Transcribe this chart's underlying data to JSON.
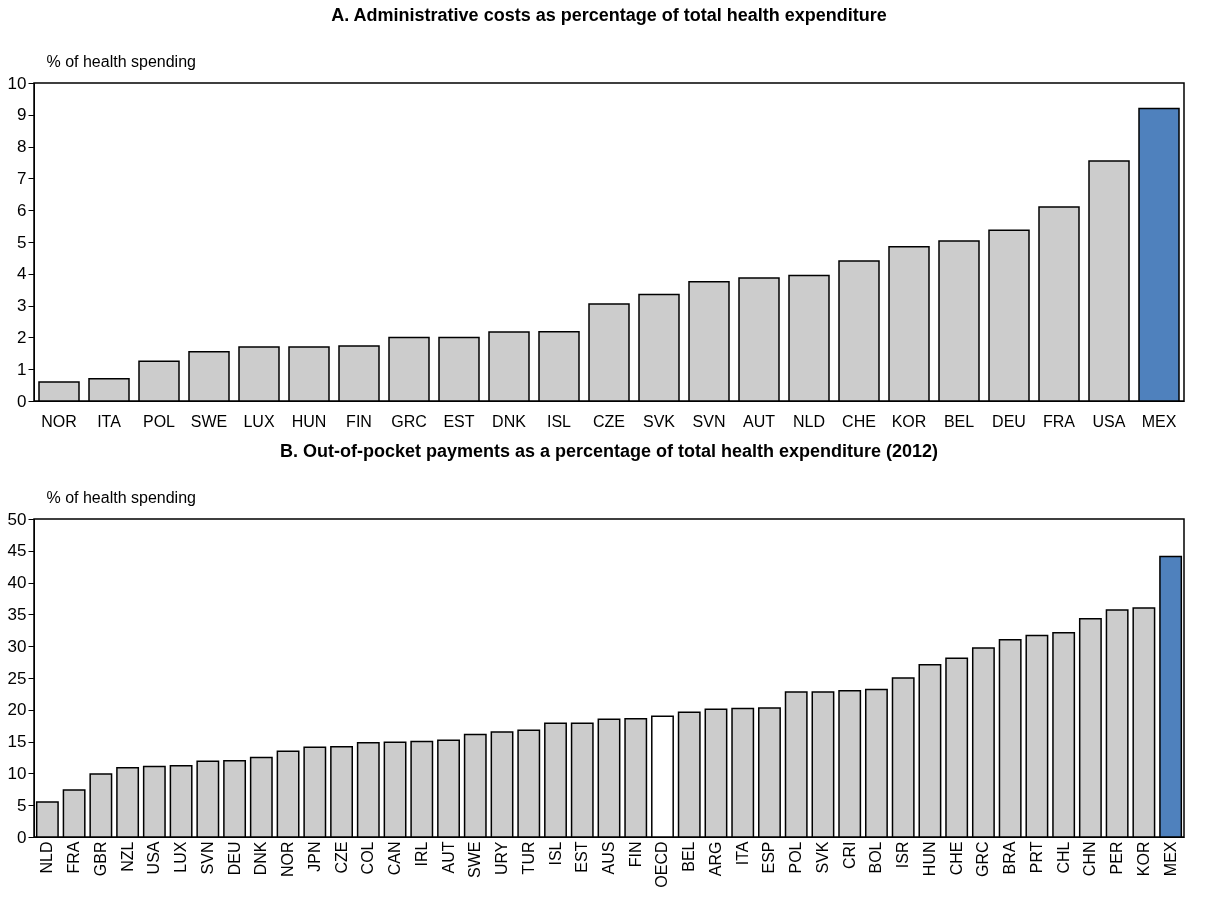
{
  "chart_data": [
    {
      "type": "bar",
      "title": "A. Administrative costs as percentage of total health expenditure",
      "ylabel": "% of health spending",
      "categories": [
        "NOR",
        "ITA",
        "POL",
        "SWE",
        "LUX",
        "HUN",
        "FIN",
        "GRC",
        "EST",
        "DNK",
        "ISL",
        "CZE",
        "SVK",
        "SVN",
        "AUT",
        "NLD",
        "CHE",
        "KOR",
        "BEL",
        "DEU",
        "FRA",
        "USA",
        "MEX"
      ],
      "values": [
        0.6,
        0.7,
        1.25,
        1.55,
        1.7,
        1.7,
        1.73,
        2.0,
        2.0,
        2.17,
        2.18,
        3.05,
        3.35,
        3.75,
        3.87,
        3.95,
        4.4,
        4.85,
        5.03,
        5.37,
        6.1,
        7.55,
        9.2
      ],
      "colors": [
        "#cccccc",
        "#cccccc",
        "#cccccc",
        "#cccccc",
        "#cccccc",
        "#cccccc",
        "#cccccc",
        "#cccccc",
        "#cccccc",
        "#cccccc",
        "#cccccc",
        "#cccccc",
        "#cccccc",
        "#cccccc",
        "#cccccc",
        "#cccccc",
        "#cccccc",
        "#cccccc",
        "#cccccc",
        "#cccccc",
        "#cccccc",
        "#cccccc",
        "#4f81bd"
      ],
      "ylim": [
        0,
        10
      ],
      "yticks": [
        0,
        1,
        2,
        3,
        4,
        5,
        6,
        7,
        8,
        9,
        10
      ],
      "grid": false
    },
    {
      "type": "bar",
      "title": "B. Out-of-pocket payments as a percentage of total health expenditure (2012)",
      "ylabel": "% of health spending",
      "categories": [
        "NLD",
        "FRA",
        "GBR",
        "NZL",
        "USA",
        "LUX",
        "SVN",
        "DEU",
        "DNK",
        "NOR",
        "JPN",
        "CZE",
        "COL",
        "CAN",
        "IRL",
        "AUT",
        "SWE",
        "URY",
        "TUR",
        "ISL",
        "EST",
        "AUS",
        "FIN",
        "OECD",
        "BEL",
        "ARG",
        "ITA",
        "ESP",
        "POL",
        "SVK",
        "CRI",
        "BOL",
        "ISR",
        "HUN",
        "CHE",
        "GRC",
        "BRA",
        "PRT",
        "CHL",
        "CHN",
        "PER",
        "KOR",
        "MEX"
      ],
      "values": [
        5.5,
        7.4,
        9.9,
        10.9,
        11.1,
        11.2,
        11.9,
        12.0,
        12.5,
        13.5,
        14.1,
        14.2,
        14.8,
        14.9,
        15.0,
        15.2,
        16.1,
        16.5,
        16.8,
        17.9,
        17.9,
        18.5,
        18.6,
        19.0,
        19.6,
        20.1,
        20.2,
        20.3,
        22.8,
        22.8,
        23.0,
        23.2,
        25.0,
        27.1,
        28.1,
        29.7,
        31.0,
        31.7,
        32.1,
        34.3,
        35.7,
        36.0,
        44.1
      ],
      "colors": [
        "#cccccc",
        "#cccccc",
        "#cccccc",
        "#cccccc",
        "#cccccc",
        "#cccccc",
        "#cccccc",
        "#cccccc",
        "#cccccc",
        "#cccccc",
        "#cccccc",
        "#cccccc",
        "#cccccc",
        "#cccccc",
        "#cccccc",
        "#cccccc",
        "#cccccc",
        "#cccccc",
        "#cccccc",
        "#cccccc",
        "#cccccc",
        "#cccccc",
        "#cccccc",
        "#ffffff",
        "#cccccc",
        "#cccccc",
        "#cccccc",
        "#cccccc",
        "#cccccc",
        "#cccccc",
        "#cccccc",
        "#cccccc",
        "#cccccc",
        "#cccccc",
        "#cccccc",
        "#cccccc",
        "#cccccc",
        "#cccccc",
        "#cccccc",
        "#cccccc",
        "#cccccc",
        "#cccccc",
        "#4f81bd"
      ],
      "ylim": [
        0,
        50
      ],
      "yticks": [
        0,
        5,
        10,
        15,
        20,
        25,
        30,
        35,
        40,
        45,
        50
      ],
      "grid": false
    }
  ]
}
